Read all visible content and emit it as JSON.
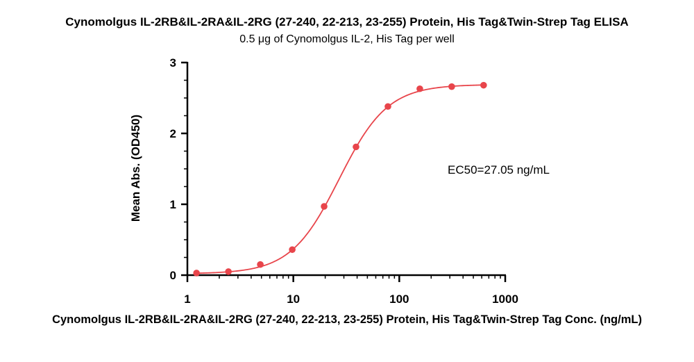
{
  "chart_data": {
    "type": "scatter",
    "title": "Cynomolgus IL-2RB&IL-2RA&IL-2RG (27-240, 22-213, 23-255) Protein, His Tag&Twin-Strep Tag ELISA",
    "subtitle": "0.5 μg of Cynomolgus IL-2, His Tag per well",
    "xlabel": "Cynomolgus IL-2RB&IL-2RA&IL-2RG (27-240, 22-213, 23-255) Protein, His Tag&Twin-Strep Tag Conc. (ng/mL)",
    "ylabel": "Mean Abs. (OD450)",
    "x_scale": "log",
    "xlim": [
      1,
      1000
    ],
    "ylim": [
      0,
      3
    ],
    "x_ticks": [
      "1",
      "10",
      "100",
      "1000"
    ],
    "y_ticks": [
      "0",
      "1",
      "2",
      "3"
    ],
    "grid": false,
    "series": [
      {
        "color": "#e8454b",
        "x": [
          1.22,
          2.44,
          4.88,
          9.77,
          19.53,
          39.06,
          78.13,
          156.25,
          312.5,
          625
        ],
        "y": [
          0.03,
          0.05,
          0.15,
          0.36,
          0.97,
          1.81,
          2.38,
          2.63,
          2.66,
          2.68
        ]
      }
    ],
    "fit": {
      "model": "4PL",
      "bottom": 0.02,
      "top": 2.69,
      "ec50": 27.05,
      "hill": 1.9
    },
    "annotation": "EC50=27.05 ng/mL"
  }
}
